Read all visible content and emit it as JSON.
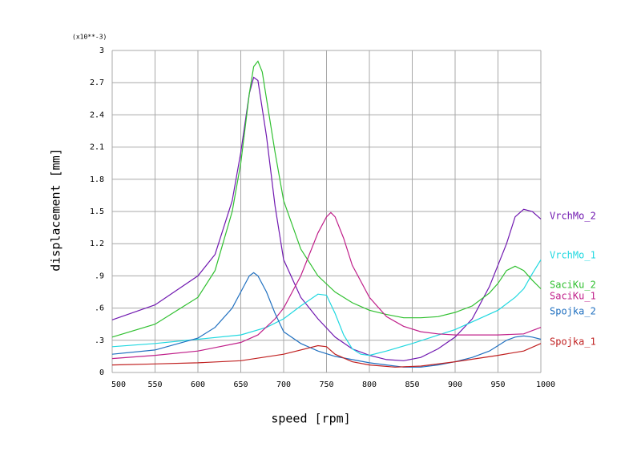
{
  "chart_data": {
    "type": "line",
    "xlabel": "speed [rpm]",
    "ylabel": "displacement [mm]",
    "y_multiplier": "(x10**-3)",
    "xlim": [
      500,
      1000
    ],
    "xticks": [
      500,
      550,
      600,
      650,
      700,
      750,
      800,
      850,
      900,
      950,
      1000
    ],
    "ylim": [
      0,
      3
    ],
    "yticks": [
      0,
      {
        "value": 0.3,
        "label": ".3"
      },
      {
        "value": 0.6,
        "label": ".6"
      },
      {
        "value": 0.9,
        "label": ".9"
      },
      1.2,
      1.5,
      1.8,
      2.1,
      2.4,
      2.7,
      3
    ],
    "grid": true,
    "series": [
      {
        "name": "VrchMo_2",
        "color": "#7018b0",
        "x": [
          500,
          550,
          600,
          620,
          640,
          650,
          660,
          665,
          670,
          680,
          690,
          700,
          720,
          740,
          760,
          780,
          800,
          820,
          840,
          860,
          880,
          900,
          920,
          940,
          960,
          970,
          980,
          990,
          1000
        ],
        "values": [
          0.49,
          0.63,
          0.9,
          1.1,
          1.6,
          2.05,
          2.6,
          2.75,
          2.72,
          2.2,
          1.55,
          1.05,
          0.7,
          0.5,
          0.33,
          0.22,
          0.16,
          0.12,
          0.11,
          0.14,
          0.22,
          0.33,
          0.5,
          0.8,
          1.2,
          1.45,
          1.52,
          1.5,
          1.43
        ]
      },
      {
        "name": "VrchMo_1",
        "color": "#20d8e0",
        "x": [
          500,
          550,
          600,
          650,
          680,
          700,
          720,
          740,
          750,
          760,
          770,
          780,
          790,
          800,
          820,
          850,
          900,
          950,
          970,
          980,
          990,
          1000
        ],
        "values": [
          0.24,
          0.27,
          0.31,
          0.35,
          0.42,
          0.5,
          0.62,
          0.73,
          0.72,
          0.55,
          0.35,
          0.22,
          0.17,
          0.16,
          0.2,
          0.27,
          0.4,
          0.58,
          0.7,
          0.78,
          0.92,
          1.05
        ]
      },
      {
        "name": "SaciKu_2",
        "color": "#30c030",
        "x": [
          500,
          550,
          600,
          620,
          640,
          650,
          660,
          665,
          670,
          675,
          680,
          690,
          700,
          720,
          740,
          760,
          780,
          800,
          820,
          840,
          860,
          880,
          900,
          920,
          940,
          950,
          960,
          970,
          980,
          990,
          1000
        ],
        "values": [
          0.33,
          0.45,
          0.7,
          0.95,
          1.5,
          1.95,
          2.6,
          2.85,
          2.9,
          2.8,
          2.55,
          2.05,
          1.6,
          1.15,
          0.9,
          0.75,
          0.65,
          0.58,
          0.54,
          0.51,
          0.51,
          0.52,
          0.56,
          0.62,
          0.74,
          0.83,
          0.95,
          0.99,
          0.95,
          0.86,
          0.78
        ]
      },
      {
        "name": "SaciKu_1",
        "color": "#c0208a",
        "x": [
          500,
          550,
          600,
          650,
          670,
          690,
          700,
          720,
          740,
          750,
          755,
          760,
          770,
          780,
          800,
          820,
          840,
          860,
          880,
          900,
          950,
          980,
          990,
          1000
        ],
        "values": [
          0.13,
          0.16,
          0.2,
          0.28,
          0.35,
          0.5,
          0.6,
          0.9,
          1.3,
          1.45,
          1.49,
          1.45,
          1.25,
          1.0,
          0.7,
          0.52,
          0.43,
          0.38,
          0.36,
          0.35,
          0.35,
          0.36,
          0.39,
          0.42
        ]
      },
      {
        "name": "Spojka_2",
        "color": "#2070c0",
        "x": [
          500,
          550,
          600,
          620,
          640,
          650,
          660,
          665,
          670,
          680,
          690,
          700,
          720,
          740,
          760,
          780,
          800,
          820,
          840,
          860,
          880,
          900,
          920,
          940,
          960,
          970,
          980,
          990,
          1000
        ],
        "values": [
          0.17,
          0.21,
          0.32,
          0.42,
          0.6,
          0.75,
          0.9,
          0.93,
          0.9,
          0.75,
          0.55,
          0.38,
          0.27,
          0.2,
          0.15,
          0.12,
          0.09,
          0.07,
          0.05,
          0.05,
          0.07,
          0.1,
          0.14,
          0.2,
          0.3,
          0.33,
          0.34,
          0.33,
          0.31
        ]
      },
      {
        "name": "Spojka_1",
        "color": "#c02020",
        "x": [
          500,
          550,
          600,
          650,
          700,
          730,
          740,
          750,
          760,
          780,
          800,
          830,
          860,
          900,
          950,
          980,
          1000
        ],
        "values": [
          0.07,
          0.08,
          0.09,
          0.11,
          0.17,
          0.23,
          0.25,
          0.24,
          0.17,
          0.1,
          0.07,
          0.05,
          0.06,
          0.1,
          0.16,
          0.2,
          0.27
        ]
      }
    ]
  }
}
